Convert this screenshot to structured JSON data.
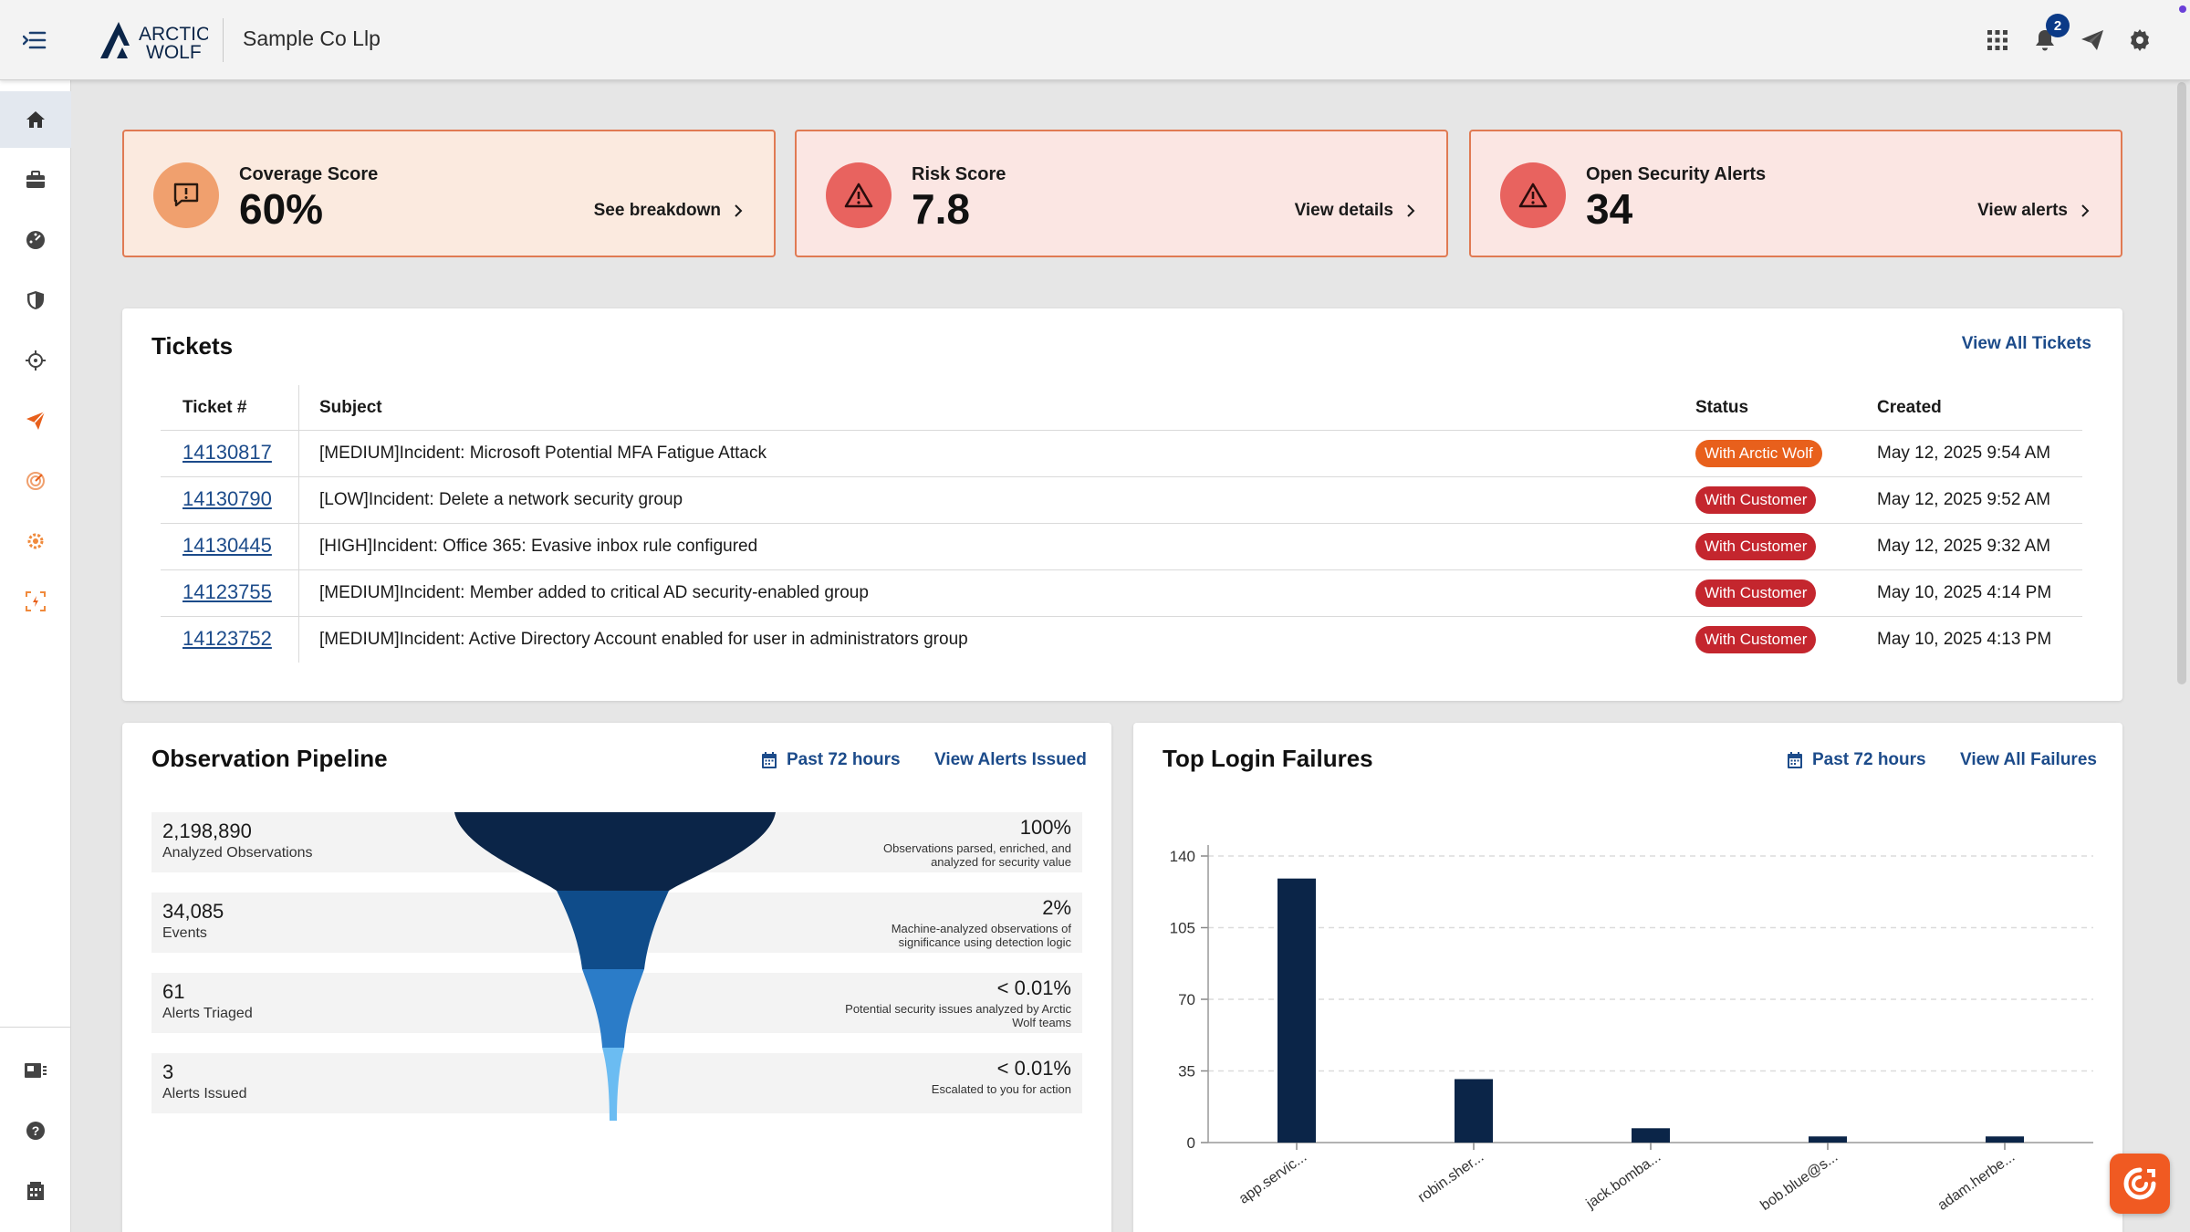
{
  "header": {
    "logo_line1": "ARCTIC",
    "logo_line2": "WOLF",
    "org_name": "Sample Co Llp",
    "notification_count": "2",
    "icons": [
      "apps-grid-icon",
      "bell-icon",
      "paper-plane-icon",
      "gear-icon"
    ]
  },
  "sidebar": {
    "items": [
      {
        "icon": "home-icon",
        "active": true
      },
      {
        "icon": "briefcase-icon"
      },
      {
        "icon": "dashboard-gauge-icon"
      },
      {
        "icon": "shield-icon"
      },
      {
        "icon": "crosshair-icon"
      },
      {
        "icon": "send-orange-icon"
      },
      {
        "icon": "radar-icon"
      },
      {
        "icon": "gear-orange-icon"
      },
      {
        "icon": "scan-frame-icon"
      }
    ],
    "bottom_items": [
      {
        "icon": "news-icon"
      },
      {
        "icon": "help-icon"
      },
      {
        "icon": "building-icon"
      }
    ]
  },
  "scores": {
    "coverage": {
      "label": "Coverage Score",
      "value": "60%",
      "link": "See breakdown"
    },
    "risk": {
      "label": "Risk Score",
      "value": "7.8",
      "link": "View details"
    },
    "alerts": {
      "label": "Open Security Alerts",
      "value": "34",
      "link": "View alerts"
    }
  },
  "tickets": {
    "title": "Tickets",
    "view_all": "View All Tickets",
    "columns": {
      "num": "Ticket #",
      "subject": "Subject",
      "status": "Status",
      "created": "Created"
    },
    "rows": [
      {
        "num": "14130817",
        "subject": "[MEDIUM]Incident: Microsoft Potential MFA Fatigue Attack",
        "status": "With Arctic Wolf",
        "created": "May 12, 2025 9:54 AM"
      },
      {
        "num": "14130790",
        "subject": "[LOW]Incident: Delete a network security group",
        "status": "With Customer",
        "created": "May 12, 2025 9:52 AM"
      },
      {
        "num": "14130445",
        "subject": "[HIGH]Incident: Office 365: Evasive inbox rule configured",
        "status": "With Customer",
        "created": "May 12, 2025 9:32 AM"
      },
      {
        "num": "14123755",
        "subject": "[MEDIUM]Incident: Member added to critical AD security-enabled group",
        "status": "With Customer",
        "created": "May 10, 2025 4:14 PM"
      },
      {
        "num": "14123752",
        "subject": "[MEDIUM]Incident: Active Directory Account enabled for user in administrators group",
        "status": "With Customer",
        "created": "May 10, 2025 4:13 PM"
      }
    ],
    "status_colors": {
      "With Arctic Wolf": "#e8601c",
      "With Customer": "#c4262e"
    }
  },
  "pipeline": {
    "title": "Observation Pipeline",
    "range": "Past 72 hours",
    "link": "View Alerts Issued",
    "rows": [
      {
        "num": "2,198,890",
        "label": "Analyzed Observations",
        "pct": "100%",
        "desc": "Observations parsed, enriched, and analyzed for security value"
      },
      {
        "num": "34,085",
        "label": "Events",
        "pct": "2%",
        "desc": "Machine-analyzed observations of significance using detection logic"
      },
      {
        "num": "61",
        "label": "Alerts Triaged",
        "pct": "< 0.01%",
        "desc": "Potential security issues analyzed by Arctic Wolf teams"
      },
      {
        "num": "3",
        "label": "Alerts Issued",
        "pct": "< 0.01%",
        "desc": "Escalated to you for action"
      }
    ],
    "funnel_colors": [
      "#0b2548",
      "#0f4c8a",
      "#2b7cc8",
      "#6bbcf2"
    ]
  },
  "failures": {
    "title": "Top Login Failures",
    "range": "Past 72 hours",
    "link": "View All Failures"
  },
  "chart_data": {
    "type": "bar",
    "categories": [
      "app.servic...",
      "robin.sher...",
      "jack.bomba...",
      "bob.blue@s...",
      "adam.herbe..."
    ],
    "values": [
      129,
      31,
      7,
      3,
      3
    ],
    "yticks": [
      0,
      35,
      70,
      105,
      140
    ],
    "ylim": [
      0,
      140
    ],
    "grid": true,
    "bar_color": "#0b2548"
  }
}
